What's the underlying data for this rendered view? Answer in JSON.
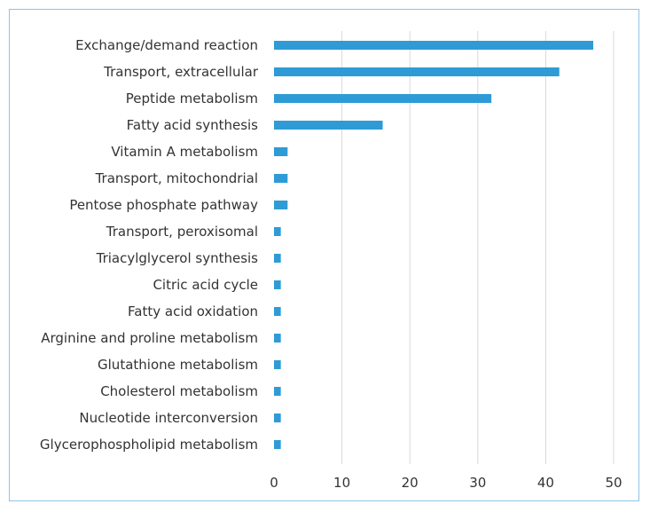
{
  "chart_data": {
    "type": "bar",
    "orientation": "horizontal",
    "title": "",
    "xlabel": "",
    "ylabel": "",
    "xlim": [
      0,
      50
    ],
    "xticks": [
      0,
      10,
      20,
      30,
      40,
      50
    ],
    "grid": "vertical",
    "legend": "none",
    "bar_color": "#2e9bd6",
    "grid_color": "#d9d9d9",
    "categories": [
      "Exchange/demand reaction",
      "Transport, extracellular",
      "Peptide metabolism",
      "Fatty acid synthesis",
      "Vitamin A metabolism",
      "Transport, mitochondrial",
      "Pentose phosphate pathway",
      "Transport, peroxisomal",
      "Triacylglycerol synthesis",
      "Citric acid cycle",
      "Fatty acid oxidation",
      "Arginine and proline metabolism",
      "Glutathione metabolism",
      "Cholesterol metabolism",
      "Nucleotide interconversion",
      "Glycerophospholipid metabolism"
    ],
    "values": [
      47,
      42,
      32,
      16,
      2,
      2,
      2,
      1,
      1,
      1,
      1,
      1,
      1,
      1,
      1,
      1
    ]
  }
}
